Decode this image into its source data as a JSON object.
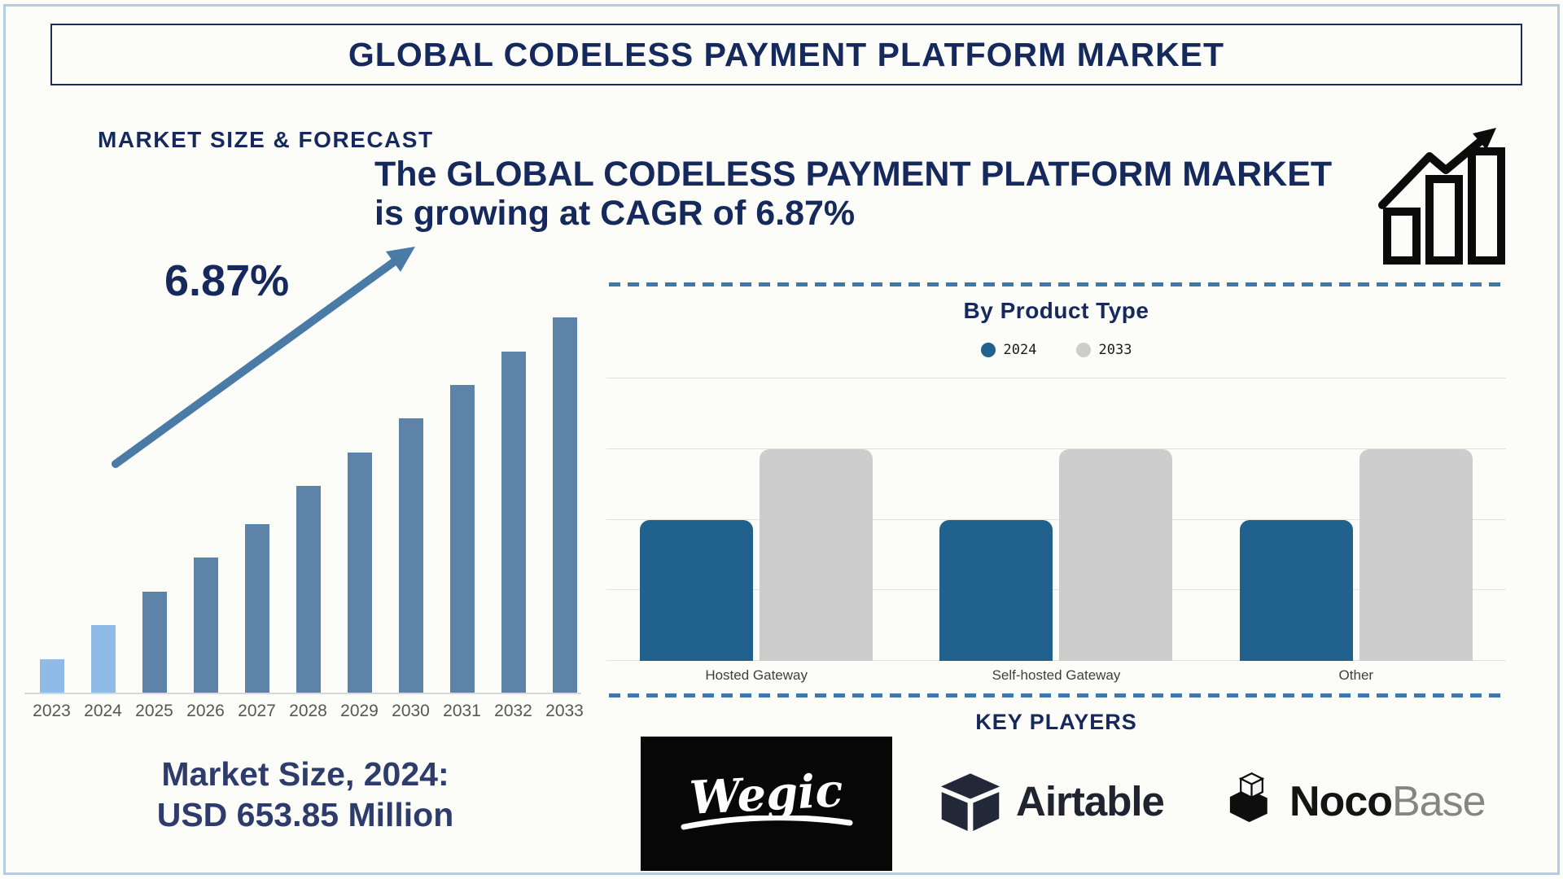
{
  "title": "GLOBAL CODELESS PAYMENT PLATFORM MARKET",
  "left_section": {
    "heading": "MARKET SIZE & FORECAST",
    "cagr_label": "6.87%",
    "market_size": {
      "line1": "Market Size, 2024:",
      "line2": "USD 653.85 Million"
    }
  },
  "headline": {
    "line1": "The GLOBAL CODELESS PAYMENT PLATFORM MARKET",
    "line2": "is growing at CAGR of 6.87%"
  },
  "key_players": {
    "heading": "KEY PLAYERS",
    "players": [
      {
        "name": "Wegic",
        "logo_text": "Wegic"
      },
      {
        "name": "Airtable",
        "logo_text": "Airtable"
      },
      {
        "name": "NocoBase",
        "logo_text_bold": "Noco",
        "logo_text_light": "Base"
      }
    ]
  },
  "chart_data": [
    {
      "type": "bar",
      "title": "MARKET SIZE & FORECAST",
      "categories": [
        "2023",
        "2024",
        "2025",
        "2026",
        "2027",
        "2028",
        "2029",
        "2030",
        "2031",
        "2032",
        "2033"
      ],
      "values": [
        9,
        18,
        27,
        36,
        45,
        55,
        64,
        73,
        82,
        91,
        100
      ],
      "values_note": "relative bar heights in percent of tallest (2033) bar; 2024 value = USD 653.85 Million; market grows at CAGR 6.87%",
      "annotations": [
        "6.87%"
      ],
      "xlabel": "",
      "ylabel": "",
      "grid": false,
      "highlight": "2023 and 2024 bars light blue, 2025-2033 bars steel blue, ascending trend arrow overlay"
    },
    {
      "type": "bar",
      "title": "By Product Type",
      "categories": [
        "Hosted Gateway",
        "Self-hosted Gateway",
        "Other"
      ],
      "series": [
        {
          "name": "2024",
          "values": [
            2,
            2,
            2
          ],
          "color": "#21618e"
        },
        {
          "name": "2033",
          "values": [
            3,
            3,
            3
          ],
          "color": "#cdcdcd"
        }
      ],
      "ylim": [
        0,
        4
      ],
      "values_note": "axis unlabeled; 2024 bars reach 50% of plot height, 2033 bars reach 75% in every category",
      "legend_position": "top",
      "grid": true
    }
  ],
  "colors": {
    "navy": "#16295c",
    "market_size_text": "#2e3c6b",
    "bar_light_blue": "#8fbce7",
    "bar_steel_blue": "#5d84a8",
    "bar_2024": "#21618e",
    "bar_2033": "#cdcdcd",
    "dashed_divider": "#3e78ad",
    "arrow": "#4a7ba6",
    "outer_border": "#b7cce0",
    "title_box_border": "#1d2c58",
    "year_label": "#575757",
    "category_label": "#3f3f3f",
    "legend_text": "#1c1c1c",
    "background": "#fcfcf9",
    "logo_black": "#070707"
  }
}
